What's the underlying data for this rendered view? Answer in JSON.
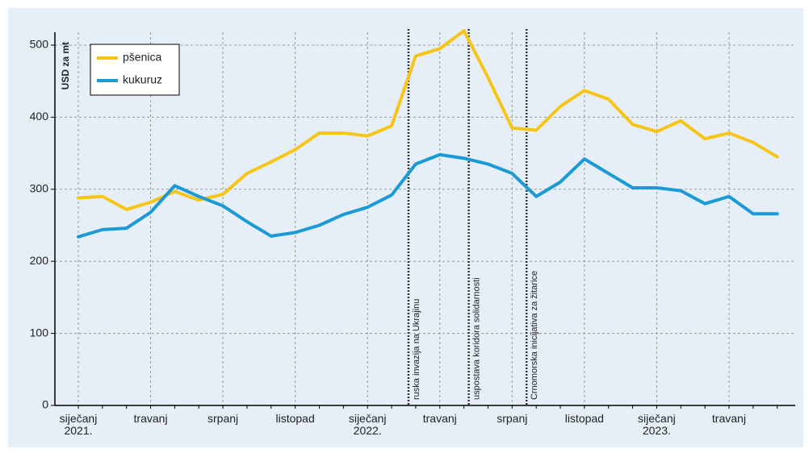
{
  "chart_data": {
    "type": "line",
    "y_label": "USD za mt",
    "categories": [
      "siječanj 2021.",
      null,
      null,
      "travanj",
      null,
      null,
      "srpanj",
      null,
      null,
      "listopad",
      null,
      null,
      "siječanj 2022.",
      null,
      null,
      "travanj",
      null,
      null,
      "srpanj",
      null,
      null,
      "listopad",
      null,
      null,
      "siječanj 2023.",
      null,
      null,
      "travanj",
      null,
      null
    ],
    "series": [
      {
        "name": "pšenica",
        "color": "#f7c518",
        "values": [
          288,
          290,
          272,
          282,
          297,
          285,
          293,
          322,
          338,
          355,
          378,
          378,
          374,
          388,
          485,
          495,
          520,
          455,
          385,
          382,
          415,
          437,
          425,
          390,
          380,
          395,
          370,
          378,
          365,
          345
        ]
      },
      {
        "name": "kukuruz",
        "color": "#1c9ad6",
        "values": [
          234,
          244,
          246,
          268,
          305,
          290,
          277,
          255,
          235,
          240,
          250,
          265,
          275,
          292,
          335,
          348,
          343,
          335,
          322,
          290,
          310,
          342,
          322,
          302,
          302,
          298,
          280,
          290,
          266,
          266
        ]
      }
    ],
    "ylim": [
      0,
      500
    ],
    "yticks": [
      0,
      100,
      200,
      300,
      400,
      500
    ],
    "grid": true,
    "legend": "top-left",
    "annotations": [
      {
        "x": 13.7,
        "label": "ruska invazija na Ukrajinu"
      },
      {
        "x": 16.2,
        "label": "uspostava koridora solidarnosti"
      },
      {
        "x": 18.6,
        "label": "Crnomorska inicijativa za žitarice"
      }
    ]
  }
}
